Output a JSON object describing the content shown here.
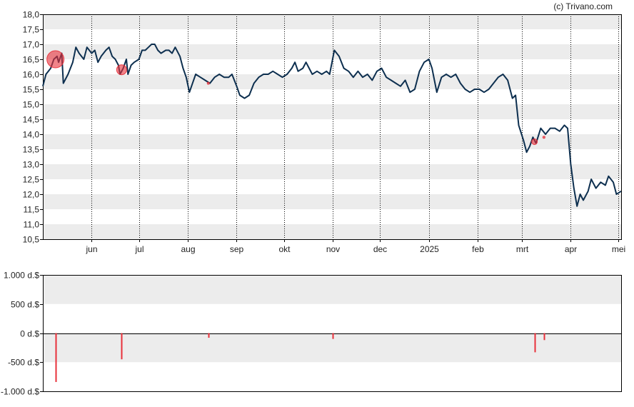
{
  "credit": "(c) Trivano.com",
  "chart_data": [
    {
      "type": "line",
      "name": "price",
      "y_ticks": [
        "10,5",
        "11,0",
        "11,5",
        "12,0",
        "12,5",
        "13,0",
        "13,5",
        "14,0",
        "14,5",
        "15,0",
        "15,5",
        "16,0",
        "16,5",
        "17,0",
        "17,5",
        "18,0"
      ],
      "ylim": [
        10.5,
        18.0
      ],
      "x_ticks": [
        {
          "label": "jun",
          "date": "2024-06-01"
        },
        {
          "label": "jul",
          "date": "2024-07-01"
        },
        {
          "label": "aug",
          "date": "2024-08-01"
        },
        {
          "label": "sep",
          "date": "2024-09-01"
        },
        {
          "label": "okt",
          "date": "2024-10-01"
        },
        {
          "label": "nov",
          "date": "2024-11-01"
        },
        {
          "label": "dec",
          "date": "2024-12-01"
        },
        {
          "label": "2025",
          "date": "2025-01-01"
        },
        {
          "label": "feb",
          "date": "2025-02-01"
        },
        {
          "label": "mrt",
          "date": "2025-03-01"
        },
        {
          "label": "apr",
          "date": "2025-04-01"
        },
        {
          "label": "mei",
          "date": "2025-05-01"
        }
      ],
      "xlim": [
        "2024-05-01",
        "2025-05-03"
      ],
      "line_color": "#0d2f4f",
      "marker_color": "#e8303a",
      "points": [
        [
          "2024-05-01",
          15.6
        ],
        [
          "2024-05-03",
          16.0
        ],
        [
          "2024-05-06",
          16.2
        ],
        [
          "2024-05-08",
          16.5
        ],
        [
          "2024-05-10",
          16.6
        ],
        [
          "2024-05-11",
          16.4
        ],
        [
          "2024-05-13",
          16.7
        ],
        [
          "2024-05-14",
          15.7
        ],
        [
          "2024-05-17",
          16.0
        ],
        [
          "2024-05-20",
          16.4
        ],
        [
          "2024-05-22",
          16.9
        ],
        [
          "2024-05-24",
          16.7
        ],
        [
          "2024-05-27",
          16.5
        ],
        [
          "2024-05-29",
          16.9
        ],
        [
          "2024-06-01",
          16.7
        ],
        [
          "2024-06-03",
          16.8
        ],
        [
          "2024-06-05",
          16.4
        ],
        [
          "2024-06-07",
          16.6
        ],
        [
          "2024-06-10",
          16.8
        ],
        [
          "2024-06-12",
          16.9
        ],
        [
          "2024-06-14",
          16.6
        ],
        [
          "2024-06-16",
          16.5
        ],
        [
          "2024-06-18",
          16.3
        ],
        [
          "2024-06-19",
          16.0
        ],
        [
          "2024-06-21",
          16.2
        ],
        [
          "2024-06-23",
          16.5
        ],
        [
          "2024-06-24",
          16.0
        ],
        [
          "2024-06-26",
          16.3
        ],
        [
          "2024-06-28",
          16.4
        ],
        [
          "2024-07-01",
          16.5
        ],
        [
          "2024-07-03",
          16.8
        ],
        [
          "2024-07-05",
          16.8
        ],
        [
          "2024-07-07",
          16.9
        ],
        [
          "2024-07-09",
          17.0
        ],
        [
          "2024-07-11",
          17.0
        ],
        [
          "2024-07-13",
          16.8
        ],
        [
          "2024-07-15",
          16.7
        ],
        [
          "2024-07-18",
          16.8
        ],
        [
          "2024-07-20",
          16.8
        ],
        [
          "2024-07-22",
          16.7
        ],
        [
          "2024-07-24",
          16.9
        ],
        [
          "2024-07-27",
          16.6
        ],
        [
          "2024-07-29",
          16.2
        ],
        [
          "2024-07-31",
          15.9
        ],
        [
          "2024-08-02",
          15.4
        ],
        [
          "2024-08-04",
          15.7
        ],
        [
          "2024-08-06",
          16.0
        ],
        [
          "2024-08-09",
          15.9
        ],
        [
          "2024-08-12",
          15.8
        ],
        [
          "2024-08-15",
          15.7
        ],
        [
          "2024-08-18",
          15.9
        ],
        [
          "2024-08-21",
          16.0
        ],
        [
          "2024-08-24",
          15.9
        ],
        [
          "2024-08-27",
          15.9
        ],
        [
          "2024-08-29",
          16.0
        ],
        [
          "2024-09-01",
          15.6
        ],
        [
          "2024-09-03",
          15.3
        ],
        [
          "2024-09-06",
          15.2
        ],
        [
          "2024-09-09",
          15.3
        ],
        [
          "2024-09-12",
          15.7
        ],
        [
          "2024-09-15",
          15.9
        ],
        [
          "2024-09-18",
          16.0
        ],
        [
          "2024-09-21",
          16.0
        ],
        [
          "2024-09-24",
          16.1
        ],
        [
          "2024-09-27",
          16.0
        ],
        [
          "2024-09-30",
          15.9
        ],
        [
          "2024-10-03",
          16.0
        ],
        [
          "2024-10-06",
          16.2
        ],
        [
          "2024-10-08",
          16.4
        ],
        [
          "2024-10-10",
          16.1
        ],
        [
          "2024-10-13",
          16.2
        ],
        [
          "2024-10-15",
          16.4
        ],
        [
          "2024-10-17",
          16.2
        ],
        [
          "2024-10-19",
          16.0
        ],
        [
          "2024-10-22",
          16.1
        ],
        [
          "2024-10-25",
          16.0
        ],
        [
          "2024-10-28",
          16.1
        ],
        [
          "2024-10-30",
          16.0
        ],
        [
          "2024-11-02",
          16.8
        ],
        [
          "2024-11-05",
          16.6
        ],
        [
          "2024-11-08",
          16.2
        ],
        [
          "2024-11-11",
          16.1
        ],
        [
          "2024-11-14",
          15.9
        ],
        [
          "2024-11-17",
          16.1
        ],
        [
          "2024-11-20",
          15.9
        ],
        [
          "2024-11-23",
          16.0
        ],
        [
          "2024-11-26",
          15.8
        ],
        [
          "2024-11-29",
          16.1
        ],
        [
          "2024-12-02",
          16.2
        ],
        [
          "2024-12-05",
          15.9
        ],
        [
          "2024-12-08",
          15.8
        ],
        [
          "2024-12-11",
          15.7
        ],
        [
          "2024-12-14",
          15.6
        ],
        [
          "2024-12-17",
          15.8
        ],
        [
          "2024-12-20",
          15.4
        ],
        [
          "2024-12-23",
          15.5
        ],
        [
          "2024-12-26",
          16.1
        ],
        [
          "2024-12-29",
          16.4
        ],
        [
          "2025-01-01",
          16.5
        ],
        [
          "2025-01-03",
          16.2
        ],
        [
          "2025-01-06",
          15.4
        ],
        [
          "2025-01-09",
          15.9
        ],
        [
          "2025-01-12",
          16.0
        ],
        [
          "2025-01-15",
          15.9
        ],
        [
          "2025-01-18",
          16.0
        ],
        [
          "2025-01-21",
          15.7
        ],
        [
          "2025-01-24",
          15.5
        ],
        [
          "2025-01-27",
          15.4
        ],
        [
          "2025-01-30",
          15.5
        ],
        [
          "2025-02-02",
          15.5
        ],
        [
          "2025-02-05",
          15.4
        ],
        [
          "2025-02-08",
          15.5
        ],
        [
          "2025-02-11",
          15.7
        ],
        [
          "2025-02-14",
          15.9
        ],
        [
          "2025-02-17",
          16.0
        ],
        [
          "2025-02-20",
          15.8
        ],
        [
          "2025-02-23",
          15.2
        ],
        [
          "2025-02-25",
          15.3
        ],
        [
          "2025-02-27",
          14.3
        ],
        [
          "2025-03-02",
          13.8
        ],
        [
          "2025-03-04",
          13.4
        ],
        [
          "2025-03-06",
          13.6
        ],
        [
          "2025-03-08",
          13.9
        ],
        [
          "2025-03-10",
          13.7
        ],
        [
          "2025-03-13",
          14.2
        ],
        [
          "2025-03-16",
          14.0
        ],
        [
          "2025-03-19",
          14.2
        ],
        [
          "2025-03-22",
          14.2
        ],
        [
          "2025-03-25",
          14.1
        ],
        [
          "2025-03-28",
          14.3
        ],
        [
          "2025-03-30",
          14.2
        ],
        [
          "2025-04-01",
          13.0
        ],
        [
          "2025-04-03",
          12.2
        ],
        [
          "2025-04-05",
          11.6
        ],
        [
          "2025-04-07",
          12.0
        ],
        [
          "2025-04-09",
          11.8
        ],
        [
          "2025-04-12",
          12.1
        ],
        [
          "2025-04-14",
          12.5
        ],
        [
          "2025-04-17",
          12.2
        ],
        [
          "2025-04-20",
          12.4
        ],
        [
          "2025-04-23",
          12.3
        ],
        [
          "2025-04-25",
          12.6
        ],
        [
          "2025-04-28",
          12.4
        ],
        [
          "2025-04-30",
          12.0
        ],
        [
          "2025-05-03",
          12.1
        ]
      ],
      "markers": [
        {
          "date": "2024-05-09",
          "value": 16.5,
          "size": "large"
        },
        {
          "date": "2024-06-20",
          "value": 16.15,
          "size": "medium"
        },
        {
          "date": "2024-08-14",
          "value": 15.7,
          "size": "tiny"
        },
        {
          "date": "2025-03-09",
          "value": 13.75,
          "size": "small"
        },
        {
          "date": "2025-03-15",
          "value": 13.9,
          "size": "tiny"
        }
      ]
    },
    {
      "type": "bar",
      "name": "insider-volume",
      "y_ticks": [
        "1.000 d.$",
        "500 d.$",
        "0 d.$",
        "-500 d.$",
        "-1.000 d.$"
      ],
      "y_tick_values": [
        1000,
        500,
        0,
        -500,
        -1000
      ],
      "ylim": [
        -1000,
        1000
      ],
      "bar_color": "#e8303a",
      "bars": [
        {
          "date": "2024-05-09",
          "value": -840
        },
        {
          "date": "2024-06-20",
          "value": -450
        },
        {
          "date": "2024-08-14",
          "value": -80
        },
        {
          "date": "2024-11-01",
          "value": -100
        },
        {
          "date": "2025-03-09",
          "value": -330
        },
        {
          "date": "2025-03-15",
          "value": -120
        }
      ]
    }
  ]
}
